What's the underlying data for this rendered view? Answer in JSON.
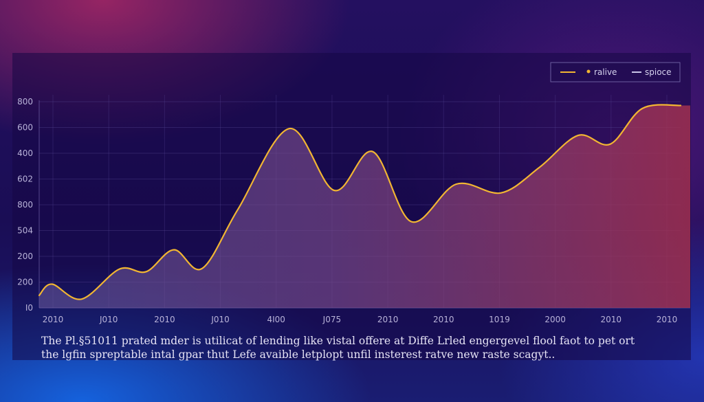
{
  "chart_data": {
    "type": "area",
    "x_tick_labels": [
      "2010",
      "J010",
      "2010",
      "J010",
      "4I00",
      "J075",
      "2010",
      "2010",
      "1019",
      "2000",
      "2010",
      "2010"
    ],
    "y_tick_labels": [
      "800",
      "600",
      "400",
      "602",
      "800",
      "504",
      "200",
      "200",
      "I0"
    ],
    "series": [
      {
        "name": "ralive",
        "color": "#f2b632",
        "x": [
          0,
          2,
          6.6,
          12.5,
          16.7,
          21,
          25.4,
          31,
          39,
          46,
          52,
          58,
          65,
          72,
          78,
          84,
          89,
          94,
          100
        ],
        "y": [
          100,
          190,
          70,
          310,
          290,
          465,
          315,
          790,
          1435,
          940,
          1250,
          690,
          990,
          920,
          1125,
          1380,
          1310,
          1595,
          1620
        ]
      }
    ],
    "legend": [
      {
        "label": "ralive",
        "color": "#f2b632"
      },
      {
        "label": "spioce",
        "color": "#c9c5e8"
      }
    ],
    "xlim": [
      0,
      100
    ],
    "ylim": [
      0,
      1650
    ],
    "grid": true,
    "legend_position": "top-right"
  },
  "caption": {
    "line1": "The Pl.§51011 prated mder is utilicat of lending like vistal offere at Diffe Lrled engergevel flool faot to pet ort",
    "line2": "the lgfin spreptable intal gpar thut Lefe avaible letplopt unfil insterest ratve new raste scagyt.."
  }
}
